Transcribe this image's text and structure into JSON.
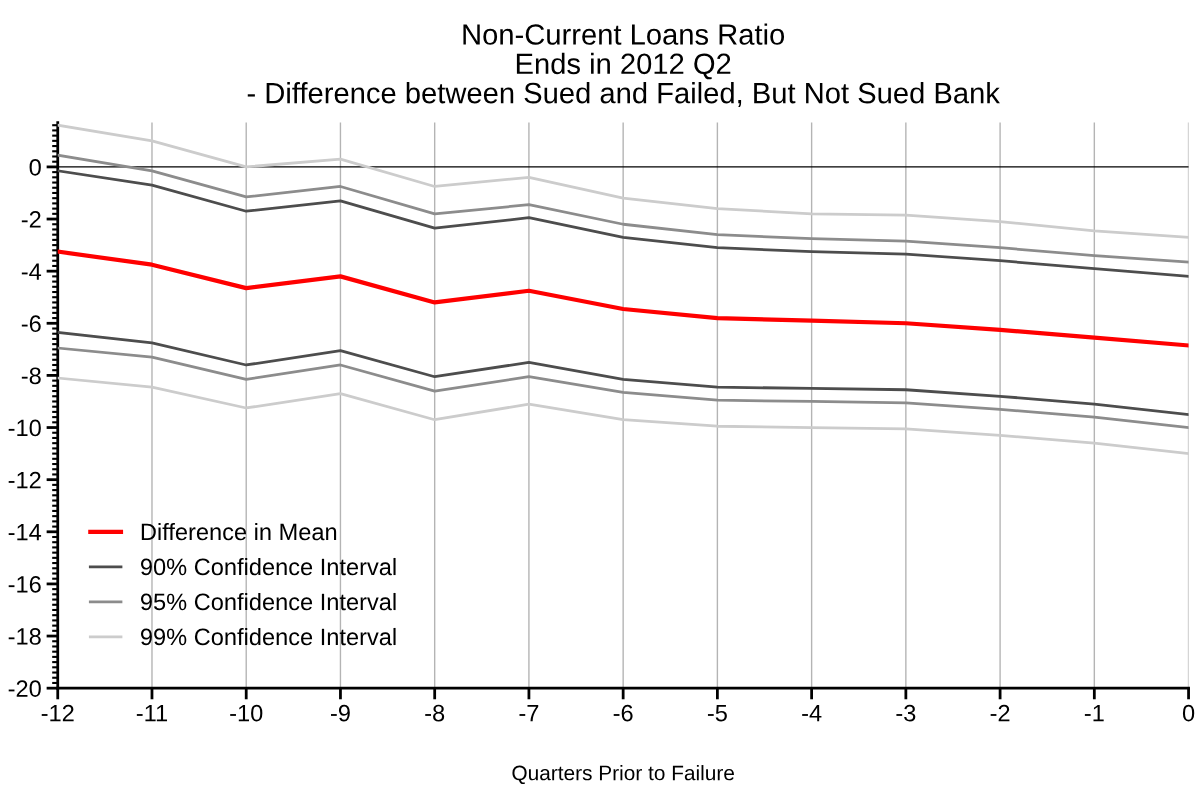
{
  "chart_data": {
    "type": "line",
    "title": "Non-Current Loans Ratio\nEnds in 2012 Q2\n- Difference between Sued and Failed, But Not Sued Bank",
    "xlabel": "Quarters Prior to Failure",
    "x": [
      -12,
      -11,
      -10,
      -9,
      -8,
      -7,
      -6,
      -5,
      -4,
      -3,
      -2,
      -1,
      0
    ],
    "series": [
      {
        "name": "Difference in Mean",
        "color": "#ff0000",
        "values": [
          -3.25,
          -3.75,
          -4.65,
          -4.2,
          -5.2,
          -4.75,
          -5.45,
          -5.8,
          -5.9,
          -6.0,
          -6.25,
          -6.55,
          -6.85
        ]
      },
      {
        "name": "90% Confidence Interval",
        "color": "#4d4d4d",
        "values": [
          -0.15,
          -0.7,
          -1.7,
          -1.3,
          -2.35,
          -1.95,
          -2.7,
          -3.1,
          -3.25,
          -3.35,
          -3.6,
          -3.9,
          -4.2
        ]
      },
      {
        "name": "95% Confidence Interval",
        "color": "#8c8c8c",
        "values": [
          0.45,
          -0.15,
          -1.15,
          -0.75,
          -1.8,
          -1.45,
          -2.2,
          -2.6,
          -2.75,
          -2.85,
          -3.1,
          -3.4,
          -3.65
        ]
      },
      {
        "name": "99% Confidence Interval",
        "color": "#cccccc",
        "values": [
          1.6,
          1.0,
          0.0,
          0.3,
          -0.75,
          -0.4,
          -1.2,
          -1.6,
          -1.8,
          -1.85,
          -2.1,
          -2.45,
          -2.7
        ]
      },
      {
        "color": "#4d4d4d",
        "values": [
          -6.35,
          -6.75,
          -7.6,
          -7.05,
          -8.05,
          -7.5,
          -8.15,
          -8.45,
          -8.5,
          -8.55,
          -8.8,
          -9.1,
          -9.5
        ]
      },
      {
        "color": "#8c8c8c",
        "values": [
          -6.95,
          -7.3,
          -8.15,
          -7.6,
          -8.6,
          -8.05,
          -8.65,
          -8.95,
          -9.0,
          -9.05,
          -9.3,
          -9.6,
          -10.0
        ]
      },
      {
        "color": "#cccccc",
        "values": [
          -8.1,
          -8.45,
          -9.25,
          -8.7,
          -9.7,
          -9.1,
          -9.7,
          -9.95,
          -10.0,
          -10.05,
          -10.3,
          -10.6,
          -11.0
        ]
      }
    ],
    "xlim": [
      -12,
      0
    ],
    "xticks": [
      -12,
      -11,
      -10,
      -9,
      -8,
      -7,
      -6,
      -5,
      -4,
      -3,
      -2,
      -1,
      0
    ],
    "ylim": [
      -20,
      1.7
    ],
    "yticks": [
      -20,
      -18,
      -16,
      -14,
      -12,
      -10,
      -8,
      -6,
      -4,
      -2,
      0
    ],
    "ref_lines": [
      {
        "axis": "y",
        "value": 0,
        "color": "#000000"
      }
    ],
    "grid": "x",
    "legend": "bottom left",
    "marker": "none",
    "line_style": "solid"
  }
}
